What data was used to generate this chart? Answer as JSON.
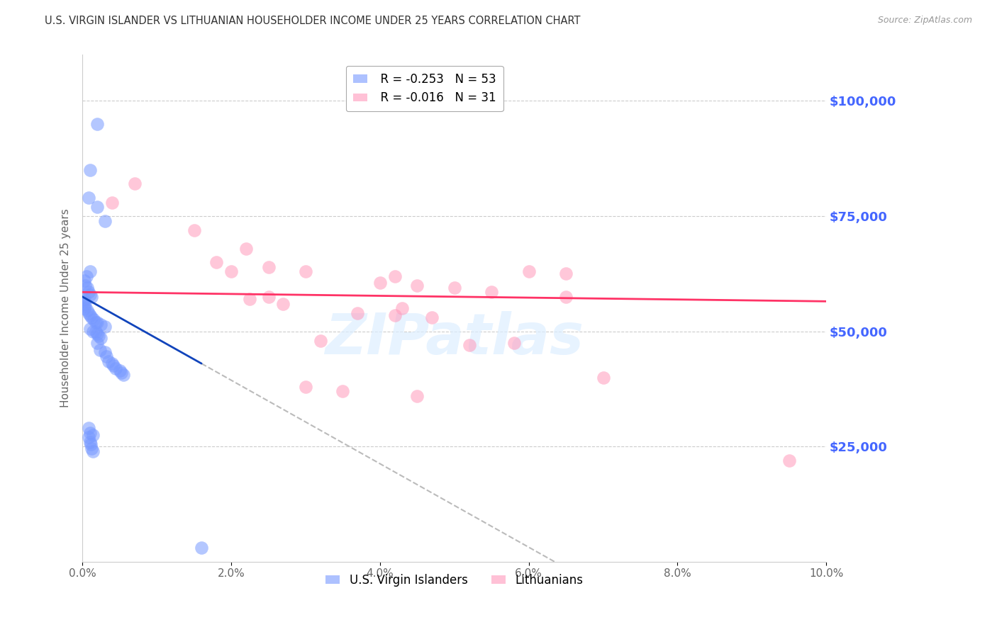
{
  "title": "U.S. VIRGIN ISLANDER VS LITHUANIAN HOUSEHOLDER INCOME UNDER 25 YEARS CORRELATION CHART",
  "source": "Source: ZipAtlas.com",
  "ylabel": "Householder Income Under 25 years",
  "xlabel_ticks": [
    "0.0%",
    "2.0%",
    "4.0%",
    "6.0%",
    "8.0%",
    "10.0%"
  ],
  "xlabel_vals": [
    0.0,
    0.02,
    0.04,
    0.06,
    0.08,
    0.1
  ],
  "ylabel_ticks": [
    "$25,000",
    "$50,000",
    "$75,000",
    "$100,000"
  ],
  "ylabel_vals": [
    25000,
    50000,
    75000,
    100000
  ],
  "xlim": [
    0.0,
    0.1
  ],
  "ylim": [
    0,
    110000
  ],
  "r_vi": -0.253,
  "n_vi": 53,
  "r_lt": -0.016,
  "n_lt": 31,
  "color_vi": "#7799FF",
  "color_lt": "#FF99BB",
  "trendline_vi_color": "#1144BB",
  "trendline_lt_color": "#FF3366",
  "trendline_ext_color": "#BBBBBB",
  "watermark": "ZIPatlas",
  "vi_x": [
    0.002,
    0.001,
    0.0008,
    0.002,
    0.003,
    0.001,
    0.0005,
    0.0003,
    0.0004,
    0.0006,
    0.0008,
    0.001,
    0.0012,
    0.0003,
    0.0002,
    0.0003,
    0.0004,
    0.0003,
    0.0006,
    0.0008,
    0.001,
    0.0012,
    0.0015,
    0.0018,
    0.002,
    0.0025,
    0.003,
    0.001,
    0.0014,
    0.0018,
    0.002,
    0.0022,
    0.0025,
    0.002,
    0.0024,
    0.003,
    0.0032,
    0.0035,
    0.004,
    0.0042,
    0.0045,
    0.005,
    0.0052,
    0.0055,
    0.0008,
    0.001,
    0.0011,
    0.0012,
    0.0014,
    0.0008,
    0.001,
    0.0014,
    0.016
  ],
  "vi_y": [
    95000,
    85000,
    79000,
    77000,
    74000,
    63000,
    62000,
    61000,
    60000,
    59500,
    58500,
    58000,
    57500,
    57000,
    56500,
    56000,
    55500,
    55000,
    54500,
    54000,
    53500,
    53000,
    52500,
    52000,
    52000,
    51500,
    51000,
    50500,
    50000,
    50000,
    49500,
    49000,
    48500,
    47500,
    46000,
    45500,
    44500,
    43500,
    43000,
    42500,
    42000,
    41500,
    41000,
    40500,
    27000,
    26000,
    25500,
    24500,
    24000,
    29000,
    28000,
    27500,
    3000
  ],
  "lt_x": [
    0.004,
    0.007,
    0.015,
    0.022,
    0.018,
    0.025,
    0.03,
    0.042,
    0.04,
    0.045,
    0.05,
    0.055,
    0.06,
    0.065,
    0.0225,
    0.027,
    0.032,
    0.037,
    0.042,
    0.047,
    0.052,
    0.02,
    0.025,
    0.03,
    0.035,
    0.045,
    0.043,
    0.07,
    0.095,
    0.058,
    0.065
  ],
  "lt_y": [
    78000,
    82000,
    72000,
    68000,
    65000,
    64000,
    63000,
    62000,
    60500,
    60000,
    59500,
    58500,
    63000,
    57500,
    57000,
    56000,
    48000,
    54000,
    53500,
    53000,
    47000,
    63000,
    57500,
    38000,
    37000,
    36000,
    55000,
    40000,
    22000,
    47500,
    62500
  ]
}
